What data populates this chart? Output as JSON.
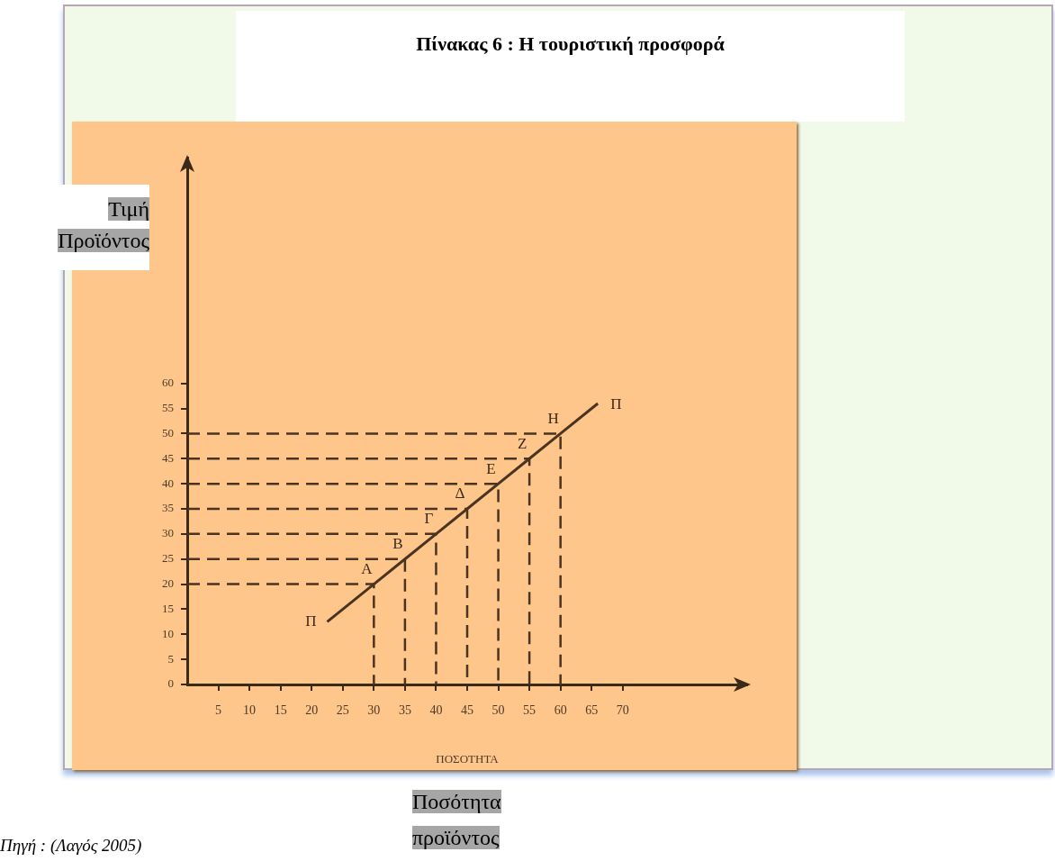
{
  "chart_data": {
    "type": "line",
    "title": "Πίνακας 6 : Η τουριστική προσφορά",
    "xlabel": "ΠΟΣΟΤΗΤΑ",
    "ylabel": "Τιμή Προϊόντος",
    "xlim": [
      0,
      90
    ],
    "ylim": [
      0,
      105
    ],
    "xticks": [
      5,
      10,
      15,
      20,
      25,
      30,
      35,
      40,
      45,
      50,
      55,
      60,
      65,
      70
    ],
    "yticks": [
      0,
      5,
      10,
      15,
      20,
      25,
      30,
      35,
      40,
      45,
      50,
      55,
      60
    ],
    "grid": false,
    "legend": false,
    "marker": "none",
    "series": [
      {
        "color": "#4a3320",
        "line_style": "solid",
        "x": [
          22.5,
          30,
          35,
          40,
          45,
          50,
          55,
          60,
          66
        ],
        "values": [
          12.5,
          20,
          25,
          30,
          35,
          40,
          45,
          50,
          56
        ]
      },
      {
        "color": "#4a3320",
        "line_style": "dashed",
        "x": [
          0,
          30,
          30
        ],
        "values": [
          20,
          20,
          0
        ]
      },
      {
        "color": "#4a3320",
        "line_style": "dashed",
        "x": [
          0,
          35,
          35
        ],
        "values": [
          25,
          25,
          0
        ]
      },
      {
        "color": "#4a3320",
        "line_style": "dashed",
        "x": [
          0,
          40,
          40
        ],
        "values": [
          30,
          30,
          0
        ]
      },
      {
        "color": "#4a3320",
        "line_style": "dashed",
        "x": [
          0,
          45,
          45
        ],
        "values": [
          35,
          35,
          0
        ]
      },
      {
        "color": "#4a3320",
        "line_style": "dashed",
        "x": [
          0,
          50,
          50
        ],
        "values": [
          40,
          40,
          0
        ]
      },
      {
        "color": "#4a3320",
        "line_style": "dashed",
        "x": [
          0,
          55,
          55
        ],
        "values": [
          45,
          45,
          0
        ]
      },
      {
        "color": "#4a3320",
        "line_style": "dashed",
        "x": [
          0,
          60,
          60
        ],
        "values": [
          50,
          50,
          0
        ]
      }
    ],
    "annotations": [
      {
        "text": "Π",
        "x": 22.5,
        "y": 12.5
      },
      {
        "text": "Α",
        "x": 30,
        "y": 20
      },
      {
        "text": "Β",
        "x": 35,
        "y": 25
      },
      {
        "text": "Γ",
        "x": 40,
        "y": 30
      },
      {
        "text": "Δ",
        "x": 45,
        "y": 35
      },
      {
        "text": "Ε",
        "x": 50,
        "y": 40
      },
      {
        "text": "Ζ",
        "x": 55,
        "y": 45
      },
      {
        "text": "Η",
        "x": 60,
        "y": 50
      },
      {
        "text": "Π",
        "x": 66,
        "y": 56
      },
      "Ποσότητα προϊόντος",
      "Πηγή : (Λαγός 2005)"
    ]
  }
}
